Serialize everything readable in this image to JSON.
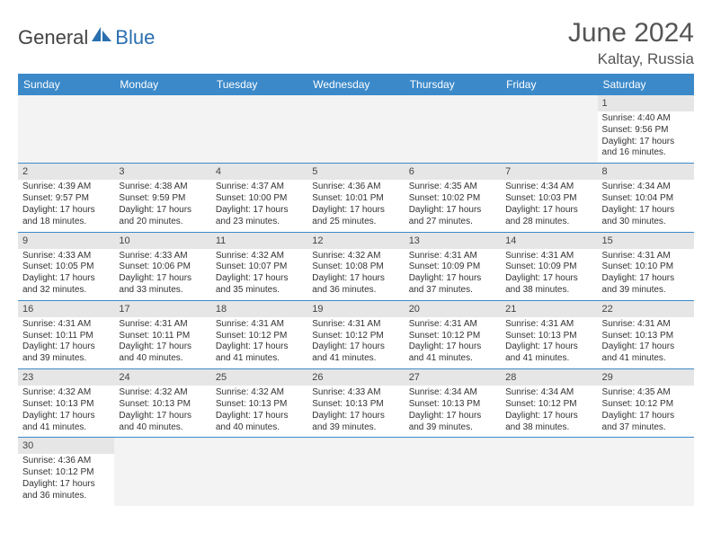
{
  "logo": {
    "general": "General",
    "blue": "Blue"
  },
  "title": "June 2024",
  "location": "Kaltay, Russia",
  "weekdays": [
    "Sunday",
    "Monday",
    "Tuesday",
    "Wednesday",
    "Thursday",
    "Friday",
    "Saturday"
  ],
  "colors": {
    "header_bg": "#3b89c9",
    "header_text": "#ffffff",
    "daynum_bg": "#e6e6e6",
    "cell_border": "#3b89c9",
    "logo_blue": "#2a6fb0",
    "logo_gray": "#444444"
  },
  "days": {
    "1": {
      "sunrise": "4:40 AM",
      "sunset": "9:56 PM",
      "daylight": "17 hours and 16 minutes."
    },
    "2": {
      "sunrise": "4:39 AM",
      "sunset": "9:57 PM",
      "daylight": "17 hours and 18 minutes."
    },
    "3": {
      "sunrise": "4:38 AM",
      "sunset": "9:59 PM",
      "daylight": "17 hours and 20 minutes."
    },
    "4": {
      "sunrise": "4:37 AM",
      "sunset": "10:00 PM",
      "daylight": "17 hours and 23 minutes."
    },
    "5": {
      "sunrise": "4:36 AM",
      "sunset": "10:01 PM",
      "daylight": "17 hours and 25 minutes."
    },
    "6": {
      "sunrise": "4:35 AM",
      "sunset": "10:02 PM",
      "daylight": "17 hours and 27 minutes."
    },
    "7": {
      "sunrise": "4:34 AM",
      "sunset": "10:03 PM",
      "daylight": "17 hours and 28 minutes."
    },
    "8": {
      "sunrise": "4:34 AM",
      "sunset": "10:04 PM",
      "daylight": "17 hours and 30 minutes."
    },
    "9": {
      "sunrise": "4:33 AM",
      "sunset": "10:05 PM",
      "daylight": "17 hours and 32 minutes."
    },
    "10": {
      "sunrise": "4:33 AM",
      "sunset": "10:06 PM",
      "daylight": "17 hours and 33 minutes."
    },
    "11": {
      "sunrise": "4:32 AM",
      "sunset": "10:07 PM",
      "daylight": "17 hours and 35 minutes."
    },
    "12": {
      "sunrise": "4:32 AM",
      "sunset": "10:08 PM",
      "daylight": "17 hours and 36 minutes."
    },
    "13": {
      "sunrise": "4:31 AM",
      "sunset": "10:09 PM",
      "daylight": "17 hours and 37 minutes."
    },
    "14": {
      "sunrise": "4:31 AM",
      "sunset": "10:09 PM",
      "daylight": "17 hours and 38 minutes."
    },
    "15": {
      "sunrise": "4:31 AM",
      "sunset": "10:10 PM",
      "daylight": "17 hours and 39 minutes."
    },
    "16": {
      "sunrise": "4:31 AM",
      "sunset": "10:11 PM",
      "daylight": "17 hours and 39 minutes."
    },
    "17": {
      "sunrise": "4:31 AM",
      "sunset": "10:11 PM",
      "daylight": "17 hours and 40 minutes."
    },
    "18": {
      "sunrise": "4:31 AM",
      "sunset": "10:12 PM",
      "daylight": "17 hours and 41 minutes."
    },
    "19": {
      "sunrise": "4:31 AM",
      "sunset": "10:12 PM",
      "daylight": "17 hours and 41 minutes."
    },
    "20": {
      "sunrise": "4:31 AM",
      "sunset": "10:12 PM",
      "daylight": "17 hours and 41 minutes."
    },
    "21": {
      "sunrise": "4:31 AM",
      "sunset": "10:13 PM",
      "daylight": "17 hours and 41 minutes."
    },
    "22": {
      "sunrise": "4:31 AM",
      "sunset": "10:13 PM",
      "daylight": "17 hours and 41 minutes."
    },
    "23": {
      "sunrise": "4:32 AM",
      "sunset": "10:13 PM",
      "daylight": "17 hours and 41 minutes."
    },
    "24": {
      "sunrise": "4:32 AM",
      "sunset": "10:13 PM",
      "daylight": "17 hours and 40 minutes."
    },
    "25": {
      "sunrise": "4:32 AM",
      "sunset": "10:13 PM",
      "daylight": "17 hours and 40 minutes."
    },
    "26": {
      "sunrise": "4:33 AM",
      "sunset": "10:13 PM",
      "daylight": "17 hours and 39 minutes."
    },
    "27": {
      "sunrise": "4:34 AM",
      "sunset": "10:13 PM",
      "daylight": "17 hours and 39 minutes."
    },
    "28": {
      "sunrise": "4:34 AM",
      "sunset": "10:12 PM",
      "daylight": "17 hours and 38 minutes."
    },
    "29": {
      "sunrise": "4:35 AM",
      "sunset": "10:12 PM",
      "daylight": "17 hours and 37 minutes."
    },
    "30": {
      "sunrise": "4:36 AM",
      "sunset": "10:12 PM",
      "daylight": "17 hours and 36 minutes."
    }
  },
  "labels": {
    "sunrise": "Sunrise: ",
    "sunset": "Sunset: ",
    "daylight": "Daylight: "
  },
  "grid": [
    [
      null,
      null,
      null,
      null,
      null,
      null,
      "1"
    ],
    [
      "2",
      "3",
      "4",
      "5",
      "6",
      "7",
      "8"
    ],
    [
      "9",
      "10",
      "11",
      "12",
      "13",
      "14",
      "15"
    ],
    [
      "16",
      "17",
      "18",
      "19",
      "20",
      "21",
      "22"
    ],
    [
      "23",
      "24",
      "25",
      "26",
      "27",
      "28",
      "29"
    ],
    [
      "30",
      null,
      null,
      null,
      null,
      null,
      null
    ]
  ]
}
